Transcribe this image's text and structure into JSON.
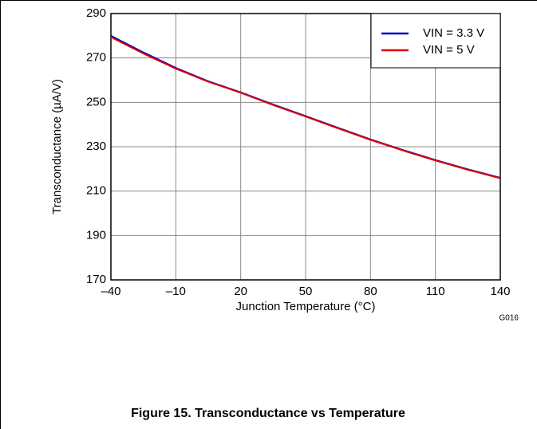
{
  "chart_data": {
    "type": "line",
    "xlabel": "Junction Temperature (°C)",
    "ylabel": "Transconductance (µA/V)",
    "code": "G016",
    "caption": "Figure 15.  Transconductance vs Temperature",
    "x": [
      -40,
      -25,
      -10,
      5,
      20,
      35,
      50,
      65,
      80,
      95,
      110,
      125,
      140
    ],
    "series": [
      {
        "name": "VIN = 3.3 V",
        "color": "#0000c0",
        "values": [
          280,
          272.5,
          265.5,
          259.5,
          254.5,
          249,
          243.8,
          238.5,
          233.3,
          228.5,
          224,
          219.8,
          216
        ]
      },
      {
        "name": "VIN = 5 V",
        "color": "#e00000",
        "values": [
          279.4,
          272,
          265.2,
          259.3,
          254.3,
          248.8,
          243.6,
          238.3,
          233.1,
          228.3,
          223.8,
          219.6,
          215.8
        ]
      }
    ],
    "xlim": [
      -40,
      140
    ],
    "xticks": [
      {
        "value": -40,
        "label": "–40"
      },
      {
        "value": -10,
        "label": "–10"
      },
      20,
      50,
      80,
      110,
      140
    ],
    "ylim": [
      170,
      290
    ],
    "yticks": [
      170,
      190,
      210,
      230,
      250,
      270,
      290
    ],
    "grid": true,
    "legend": "upper right"
  }
}
